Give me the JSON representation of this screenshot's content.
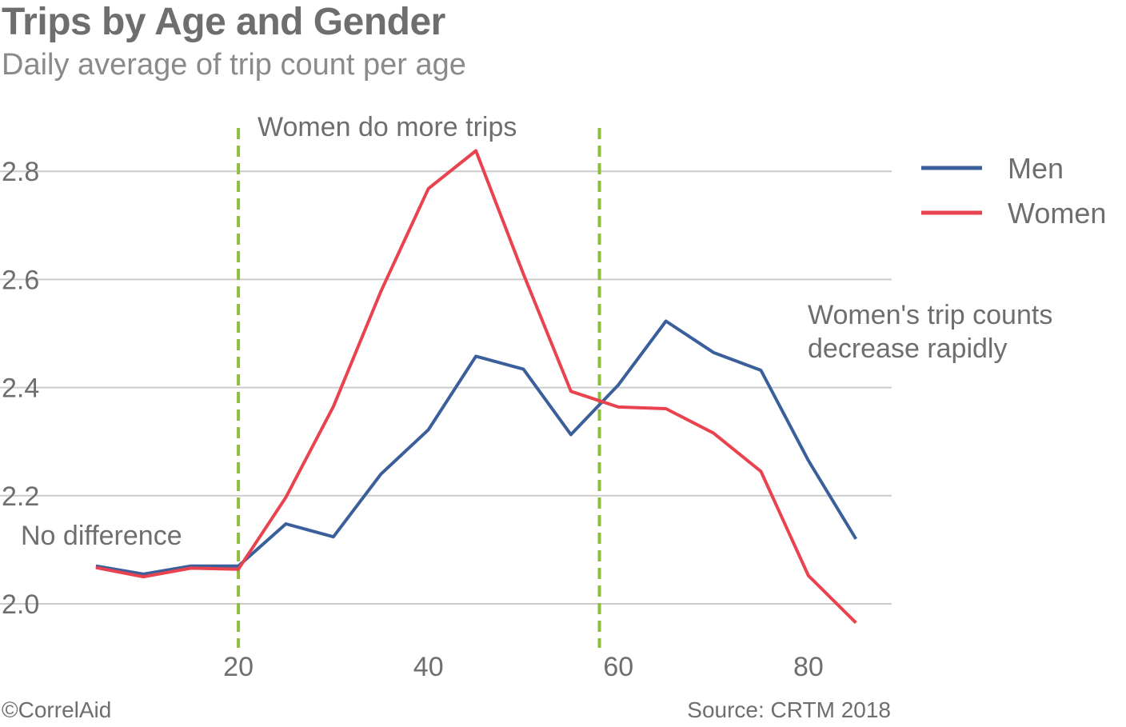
{
  "chart_data": {
    "type": "line",
    "title": "Trips by Age and Gender",
    "subtitle": "Daily average of trip count per age",
    "xlim": [
      0,
      90
    ],
    "ylim": [
      1.9,
      2.92
    ],
    "x_ticks": [
      "20",
      "40",
      "60",
      "80"
    ],
    "y_ticks": [
      "2.0",
      "2.2",
      "2.4",
      "2.6",
      "2.8"
    ],
    "grid": "horizontal",
    "legend_position": "top-right",
    "x": [
      5,
      10,
      15,
      20,
      25,
      30,
      35,
      40,
      45,
      50,
      55,
      60,
      65,
      70,
      75,
      80,
      85
    ],
    "series": [
      {
        "name": "Men",
        "color": "#3b5f9b",
        "values": [
          2.07,
          2.055,
          2.07,
          2.07,
          2.148,
          2.124,
          2.24,
          2.322,
          2.458,
          2.434,
          2.313,
          2.405,
          2.523,
          2.465,
          2.432,
          2.265,
          2.12
        ]
      },
      {
        "name": "Women",
        "color": "#e8434e",
        "values": [
          2.067,
          2.05,
          2.066,
          2.064,
          2.197,
          2.365,
          2.578,
          2.768,
          2.838,
          2.61,
          2.393,
          2.364,
          2.361,
          2.316,
          2.245,
          2.052,
          1.965
        ]
      }
    ],
    "reference_lines": [
      20,
      58
    ],
    "reference_color": "#8fbe3f",
    "annotations": {
      "middle": "Women do more trips",
      "left": "No difference",
      "right_line1": "Women's trip counts",
      "right_line2": "decrease rapidly"
    }
  },
  "footer": {
    "left": "©CorrelAid",
    "right": "Source: CRTM 2018"
  }
}
